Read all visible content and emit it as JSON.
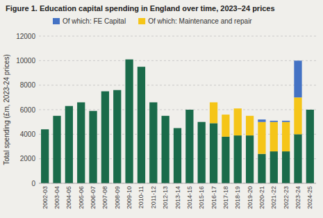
{
  "chart_data": {
    "type": "bar",
    "stacked": true,
    "title": "Figure 1. Education capital spending in England over time, 2023–24 prices",
    "y_label": "Total spending (£m, 2023-24 prices)",
    "categories": [
      "2002-03",
      "2003-04",
      "2004-05",
      "2005-06",
      "2006-07",
      "2007-08",
      "2008-09",
      "2009-10",
      "2010-11",
      "2011-12",
      "2012-13",
      "2013-14",
      "2014-15",
      "2015-16",
      "2016-17",
      "2017-18",
      "2018-19",
      "2019-20",
      "2020-21",
      "2021-22",
      "2022-23",
      "2023-24",
      "2024-25"
    ],
    "series": [
      {
        "color": "#1a6b4a",
        "values": [
          4400,
          5500,
          6300,
          6600,
          5900,
          7500,
          7600,
          10100,
          9500,
          6600,
          5500,
          4500,
          6000,
          5000,
          4900,
          3800,
          3900,
          3900,
          2400,
          2600,
          2600,
          4000,
          6000
        ]
      },
      {
        "name": "Of which: Maintenance and repair",
        "color": "#f5c518",
        "values": [
          0,
          0,
          0,
          0,
          0,
          0,
          0,
          0,
          0,
          0,
          0,
          0,
          0,
          0,
          1700,
          1800,
          2200,
          1600,
          2600,
          2400,
          2400,
          3000,
          0
        ]
      },
      {
        "name": "Of which: FE Capital",
        "color": "#4472c4",
        "values": [
          0,
          0,
          0,
          0,
          0,
          0,
          0,
          0,
          0,
          0,
          0,
          0,
          0,
          0,
          0,
          0,
          0,
          0,
          200,
          100,
          100,
          3000,
          0
        ]
      }
    ],
    "ylim": [
      0,
      12000
    ],
    "yticks": [
      0,
      2000,
      4000,
      6000,
      8000,
      10000,
      12000
    ],
    "grid": true,
    "legend": "top"
  }
}
